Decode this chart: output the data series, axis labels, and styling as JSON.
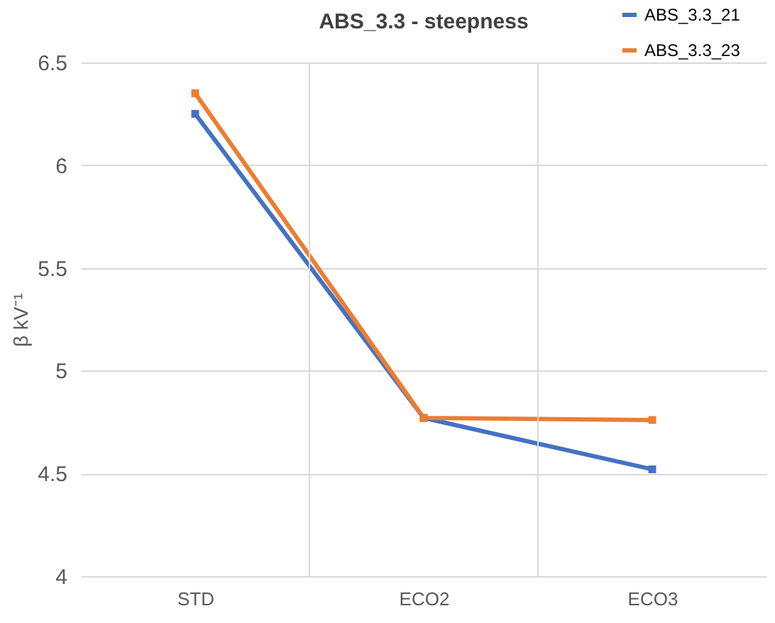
{
  "chart_data": {
    "type": "line",
    "title": "ABS_3.3 - steepness",
    "ylabel": "β kV⁻¹",
    "categories": [
      "STD",
      "ECO2",
      "ECO3"
    ],
    "series": [
      {
        "name": "ABS_3.3_21",
        "color": "#4472c4",
        "values": [
          6.25,
          4.77,
          4.52
        ]
      },
      {
        "name": "ABS_3.3_23",
        "color": "#ed7d31",
        "values": [
          6.35,
          4.77,
          4.76
        ]
      }
    ],
    "ylim": [
      4,
      6.5
    ],
    "yticks": [
      4,
      4.5,
      5,
      5.5,
      6,
      6.5
    ],
    "grid": true,
    "legend": "top right",
    "marker": "square",
    "line_style": "solid"
  }
}
